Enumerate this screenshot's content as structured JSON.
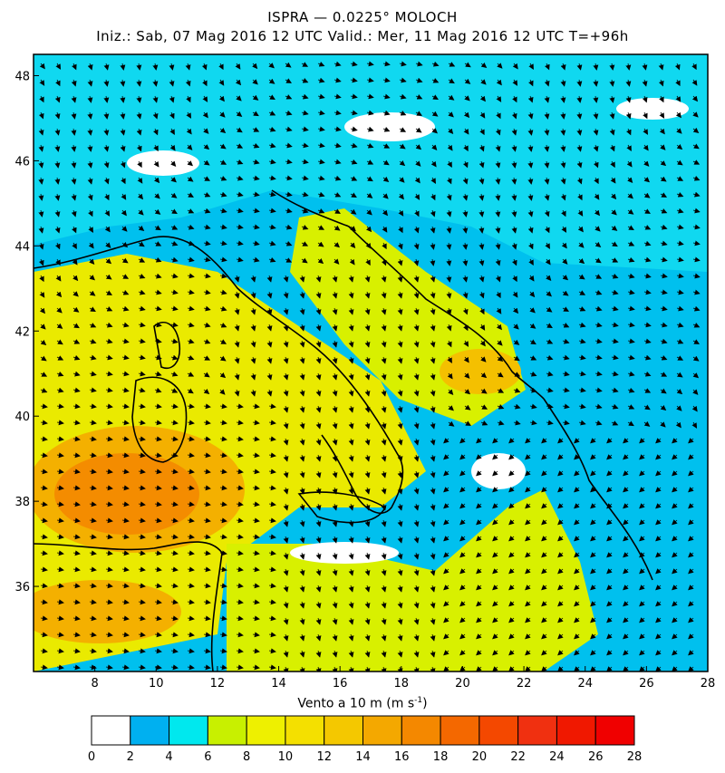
{
  "header": {
    "title": "ISPRA — 0.0225° MOLOCH",
    "subtitle": "Iniz.: Sab, 07 Mag 2016  12 UTC  Valid.: Mer, 11 Mag 2016  12 UTC  T=+96h"
  },
  "map": {
    "lon_range": [
      6,
      28
    ],
    "lat_range": [
      34,
      48.5
    ],
    "lon_ticks": [
      "8",
      "10",
      "12",
      "14",
      "16",
      "18",
      "20",
      "22",
      "24",
      "26",
      "28"
    ],
    "lat_ticks": [
      "36",
      "38",
      "40",
      "42",
      "44",
      "46",
      "48"
    ]
  },
  "legend": {
    "title": "Vento a 10 m (m s",
    "title_sup": "-1",
    "title_close": ")",
    "tick_labels": [
      "0",
      "2",
      "4",
      "6",
      "8",
      "10",
      "12",
      "14",
      "16",
      "18",
      "20",
      "22",
      "24",
      "26",
      "28"
    ],
    "colors": [
      "#ffffff",
      "#00b0f0",
      "#00e8ee",
      "#c8f000",
      "#eef000",
      "#f4e000",
      "#f4c800",
      "#f4a800",
      "#f48800",
      "#f46800",
      "#f44800",
      "#f03010",
      "#f01800",
      "#f00000"
    ]
  }
}
